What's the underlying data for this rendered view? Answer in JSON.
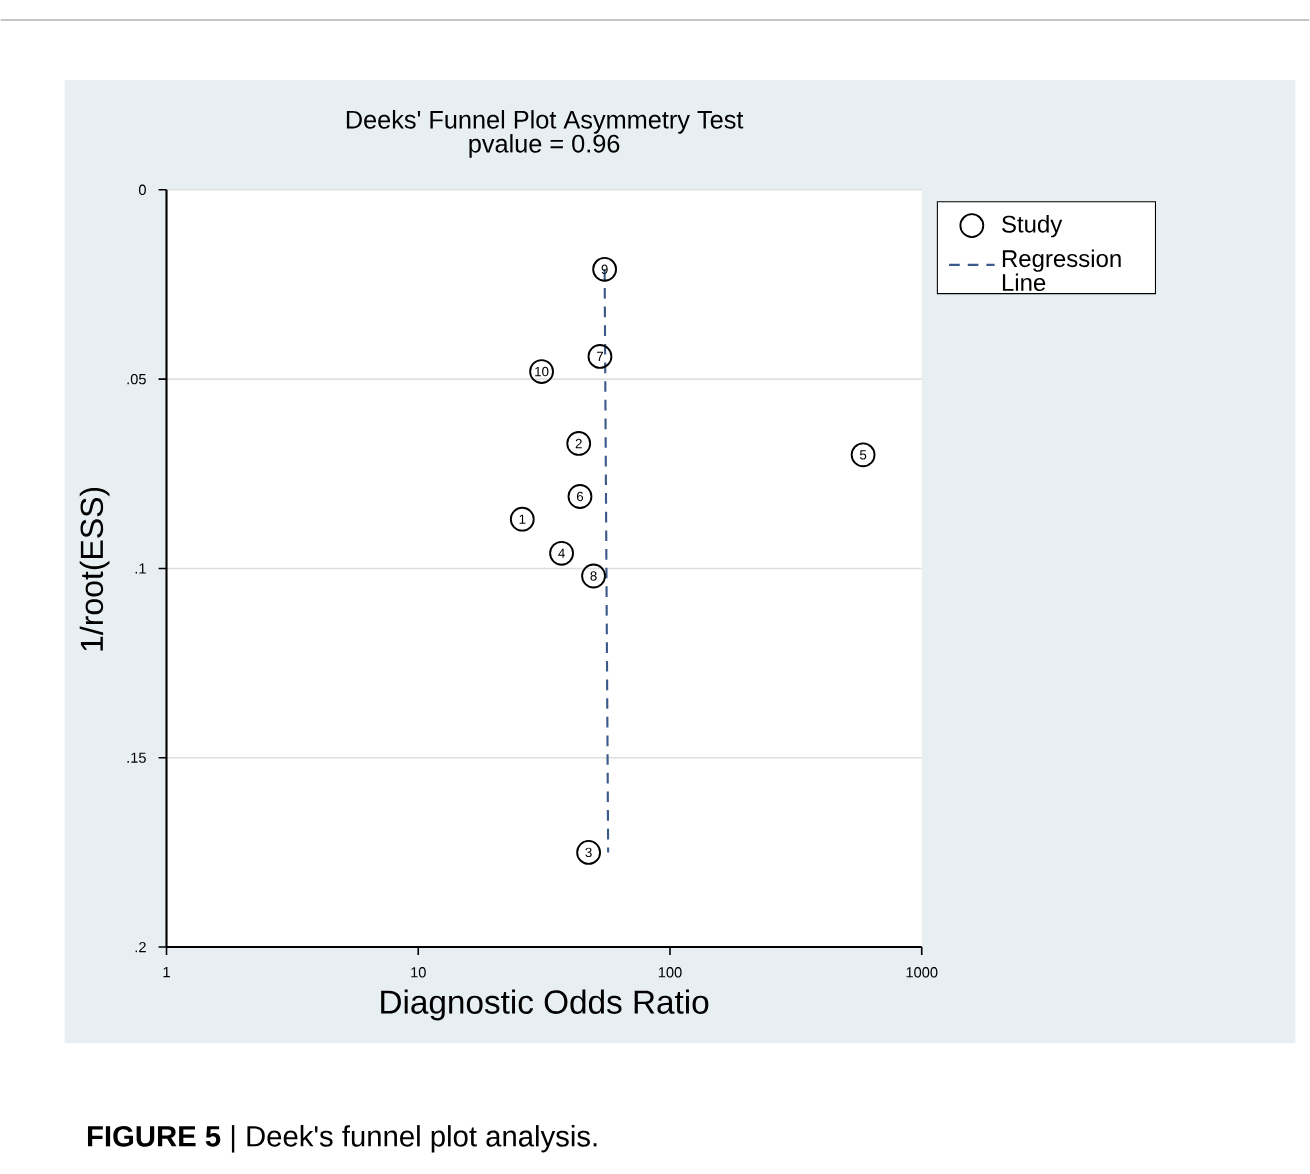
{
  "chart_data": {
    "type": "scatter",
    "title": "Deeks' Funnel Plot Asymmetry Test",
    "subtitle": "pvalue =   0.96",
    "xlabel": "Diagnostic Odds Ratio",
    "ylabel": "1/root(ESS)",
    "log": "x",
    "xlim": [
      1,
      1000
    ],
    "xticks": [
      1,
      10,
      100,
      1000
    ],
    "ylim": [
      0.2,
      0
    ],
    "yticks": [
      {
        "value": 0,
        "label": "0"
      },
      {
        "value": 0.05,
        "label": ".05"
      },
      {
        "value": 0.1,
        "label": ".1"
      },
      {
        "value": 0.15,
        "label": ".15"
      },
      {
        "value": 0.2,
        "label": ".2"
      }
    ],
    "grid": "y",
    "legend": "right",
    "series": [
      {
        "name": "Study",
        "type": "scatter",
        "marker": "circle",
        "color": "#000000",
        "x": [
          25.9,
          43.4,
          47.5,
          37.1,
          585,
          43.9,
          52.7,
          49.7,
          55,
          30.9
        ],
        "values": [
          0.087,
          0.067,
          0.175,
          0.096,
          0.07,
          0.081,
          0.044,
          0.102,
          0.021,
          0.048
        ]
      },
      {
        "name": "Regression Line",
        "type": "line",
        "line_style": "dashed",
        "color": "#3b5a8a",
        "x": [
          55,
          56.8
        ],
        "values": [
          0.021,
          0.175
        ]
      }
    ],
    "annotations": [
      {
        "text": "1",
        "x": 25.9,
        "y": 0.087
      },
      {
        "text": "2",
        "x": 43.4,
        "y": 0.067
      },
      {
        "text": "3",
        "x": 47.5,
        "y": 0.175
      },
      {
        "text": "4",
        "x": 37.1,
        "y": 0.096
      },
      {
        "text": "5",
        "x": 585,
        "y": 0.07
      },
      {
        "text": "6",
        "x": 43.9,
        "y": 0.081
      },
      {
        "text": "7",
        "x": 52.7,
        "y": 0.044
      },
      {
        "text": "8",
        "x": 49.7,
        "y": 0.102
      },
      {
        "text": "9",
        "x": 55,
        "y": 0.021
      },
      {
        "text": "10",
        "x": 30.9,
        "y": 0.048
      },
      "**FIGURE 5** | Deek's funnel plot analysis."
    ]
  }
}
